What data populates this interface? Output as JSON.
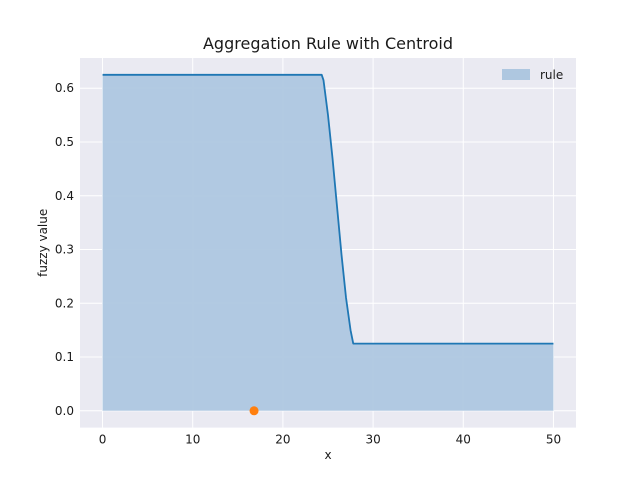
{
  "chart_data": {
    "type": "area",
    "title": "Aggregation Rule with Centroid",
    "xlabel": "x",
    "ylabel": "fuzzy value",
    "xlim": [
      -2.5,
      52.5
    ],
    "ylim": [
      -0.03125,
      0.65625
    ],
    "xticks": [
      0,
      10,
      20,
      30,
      40,
      50
    ],
    "yticks": [
      0.0,
      0.1,
      0.2,
      0.3,
      0.4,
      0.5,
      0.6
    ],
    "xtick_labels": [
      "0",
      "10",
      "20",
      "30",
      "40",
      "50"
    ],
    "ytick_labels": [
      "0.0",
      "0.1",
      "0.2",
      "0.3",
      "0.4",
      "0.5",
      "0.6"
    ],
    "grid": true,
    "legend": {
      "position": "top-right",
      "entries": [
        "rule"
      ]
    },
    "series": [
      {
        "name": "rule",
        "x": [
          0,
          24.3,
          24.5,
          25,
          25.5,
          26,
          26.5,
          27,
          27.5,
          27.8,
          50
        ],
        "y": [
          0.625,
          0.625,
          0.615,
          0.55,
          0.47,
          0.38,
          0.29,
          0.21,
          0.15,
          0.125,
          0.125
        ],
        "line_color": "#1f77b4",
        "fill_color": "#aec7e0"
      }
    ],
    "centroid": {
      "x": 16.8,
      "y": 0.0,
      "color": "#ff7f0e"
    }
  }
}
